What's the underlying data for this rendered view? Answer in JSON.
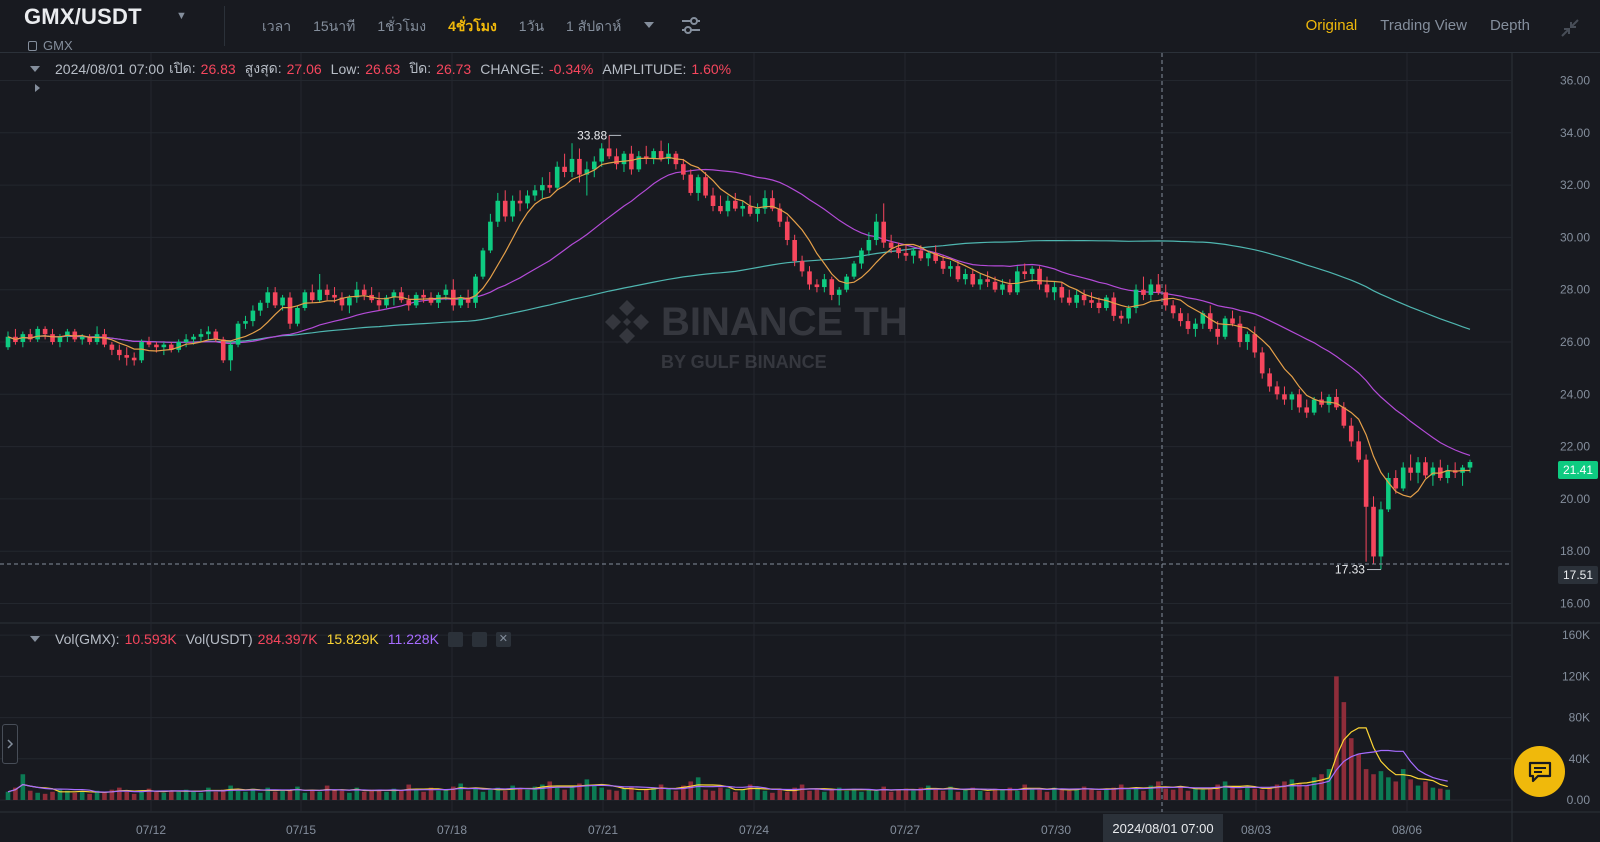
{
  "header": {
    "pair": "GMX/USDT",
    "asset": "GMX",
    "intervals": [
      {
        "label": "เวลา",
        "active": false
      },
      {
        "label": "15นาที",
        "active": false
      },
      {
        "label": "1ชั่วโมง",
        "active": false
      },
      {
        "label": "4ชั่วโมง",
        "active": true
      },
      {
        "label": "1วัน",
        "active": false
      },
      {
        "label": "1 สัปดาห์",
        "active": false
      }
    ],
    "views": [
      {
        "label": "Original",
        "active": true
      },
      {
        "label": "Trading View",
        "active": false
      },
      {
        "label": "Depth",
        "active": false
      }
    ]
  },
  "legend": {
    "datetime": "2024/08/01 07:00",
    "open_label": "เปิด:",
    "open": "26.83",
    "high_label": "สูงสุด:",
    "high": "27.06",
    "low_label": "Low:",
    "low": "26.63",
    "close_label": "ปิด:",
    "close": "26.73",
    "change_label": "CHANGE:",
    "change": "-0.34%",
    "amplitude_label": "AMPLITUDE:",
    "amplitude": "1.60%"
  },
  "volume_legend": {
    "vol_gmx_label": "Vol(GMX):",
    "vol_gmx": "10.593K",
    "vol_usdt_label": "Vol(USDT)",
    "vol_usdt": "284.397K",
    "ma1": "15.829K",
    "ma2": "11.228K"
  },
  "watermark": {
    "brand": "BINANCE TH",
    "sub": "BY GULF BINANCE"
  },
  "colors": {
    "up": "#0ecb81",
    "down": "#f6465d",
    "accent": "#f0b90b",
    "ma7": "#e5a049",
    "ma25": "#b44bd8",
    "ma99": "#4fb6b0"
  },
  "chart_data": {
    "type": "candlestick",
    "price_axis": {
      "ticks": [
        16,
        18,
        20,
        22,
        24,
        26,
        28,
        30,
        32,
        34,
        36
      ],
      "ylim": [
        15.6,
        36.4
      ]
    },
    "price_tick_labels": [
      "16.00",
      "18.00",
      "20.00",
      "22.00",
      "24.00",
      "26.00",
      "28.00",
      "30.00",
      "32.00",
      "34.00",
      "36.00"
    ],
    "volume_axis": {
      "ticks": [
        0,
        40000,
        80000,
        120000,
        160000
      ],
      "labels": [
        "0.00",
        "40K",
        "80K",
        "120K",
        "160K"
      ],
      "ylim": [
        0,
        165000
      ]
    },
    "x_ticks": [
      "07/12",
      "07/15",
      "07/18",
      "07/21",
      "07/24",
      "07/27",
      "07/30",
      "08/03",
      "08/06"
    ],
    "crosshair_x_label": "2024/08/01 07:00",
    "crosshair_price": 17.51,
    "last_price": "21.41",
    "crosshair_price_label": "17.51",
    "annotations": {
      "high": "33.88",
      "low": "17.33"
    },
    "candles_4h": [
      [
        25.8,
        26.4,
        25.7,
        26.2
      ],
      [
        26.2,
        26.5,
        25.9,
        26.0
      ],
      [
        26.0,
        26.4,
        25.8,
        26.3
      ],
      [
        26.3,
        26.5,
        26.0,
        26.1
      ],
      [
        26.1,
        26.6,
        26.0,
        26.5
      ],
      [
        26.5,
        26.6,
        26.1,
        26.3
      ],
      [
        26.3,
        26.5,
        25.9,
        26.0
      ],
      [
        26.0,
        26.3,
        25.8,
        26.2
      ],
      [
        26.2,
        26.5,
        26.0,
        26.4
      ],
      [
        26.4,
        26.5,
        26.0,
        26.1
      ],
      [
        26.1,
        26.3,
        25.9,
        26.2
      ],
      [
        26.2,
        26.3,
        25.9,
        26.0
      ],
      [
        26.0,
        26.6,
        25.9,
        26.3
      ],
      [
        26.3,
        26.5,
        25.8,
        25.9
      ],
      [
        25.9,
        26.0,
        25.5,
        25.7
      ],
      [
        25.7,
        25.9,
        25.3,
        25.5
      ],
      [
        25.5,
        25.8,
        25.1,
        25.4
      ],
      [
        25.4,
        25.6,
        25.1,
        25.3
      ],
      [
        25.3,
        26.1,
        25.2,
        26.0
      ],
      [
        26.0,
        26.2,
        25.8,
        25.9
      ],
      [
        25.9,
        26.0,
        25.6,
        25.8
      ],
      [
        25.8,
        26.0,
        25.5,
        25.9
      ],
      [
        25.9,
        26.0,
        25.6,
        25.7
      ],
      [
        25.7,
        26.1,
        25.6,
        26.0
      ],
      [
        26.0,
        26.3,
        25.8,
        26.1
      ],
      [
        26.1,
        26.3,
        25.9,
        26.2
      ],
      [
        26.2,
        26.5,
        26.0,
        26.3
      ],
      [
        26.3,
        26.6,
        26.1,
        26.4
      ],
      [
        26.4,
        26.5,
        26.0,
        26.1
      ],
      [
        26.1,
        26.2,
        25.2,
        25.3
      ],
      [
        25.3,
        26.0,
        24.9,
        25.9
      ],
      [
        25.9,
        26.8,
        25.8,
        26.7
      ],
      [
        26.7,
        27.0,
        26.5,
        26.8
      ],
      [
        26.8,
        27.4,
        26.6,
        27.2
      ],
      [
        27.2,
        27.6,
        27.0,
        27.5
      ],
      [
        27.5,
        28.1,
        27.3,
        27.9
      ],
      [
        27.9,
        28.1,
        27.3,
        27.4
      ],
      [
        27.4,
        27.8,
        27.2,
        27.7
      ],
      [
        27.7,
        27.9,
        26.5,
        26.7
      ],
      [
        26.7,
        27.4,
        26.6,
        27.3
      ],
      [
        27.3,
        28.0,
        27.2,
        27.9
      ],
      [
        27.9,
        28.2,
        27.5,
        27.6
      ],
      [
        27.6,
        28.6,
        27.5,
        28.0
      ],
      [
        28.0,
        28.2,
        27.6,
        27.8
      ],
      [
        27.8,
        28.1,
        27.5,
        27.7
      ],
      [
        27.7,
        27.9,
        27.2,
        27.4
      ],
      [
        27.4,
        27.8,
        27.1,
        27.7
      ],
      [
        27.7,
        28.3,
        27.5,
        28.0
      ],
      [
        28.0,
        28.2,
        27.6,
        27.8
      ],
      [
        27.8,
        28.1,
        27.5,
        27.6
      ],
      [
        27.6,
        27.9,
        27.2,
        27.4
      ],
      [
        27.4,
        27.8,
        27.3,
        27.7
      ],
      [
        27.7,
        28.0,
        27.4,
        27.9
      ],
      [
        27.9,
        28.1,
        27.5,
        27.6
      ],
      [
        27.6,
        27.8,
        27.2,
        27.4
      ],
      [
        27.4,
        27.9,
        27.3,
        27.8
      ],
      [
        27.8,
        28.0,
        27.5,
        27.7
      ],
      [
        27.7,
        27.9,
        27.4,
        27.5
      ],
      [
        27.5,
        27.9,
        27.3,
        27.8
      ],
      [
        27.8,
        28.2,
        27.6,
        28.0
      ],
      [
        28.0,
        28.4,
        27.2,
        27.4
      ],
      [
        27.4,
        27.8,
        27.3,
        27.7
      ],
      [
        27.7,
        28.0,
        27.3,
        27.5
      ],
      [
        27.5,
        28.6,
        27.3,
        28.5
      ],
      [
        28.5,
        29.6,
        28.4,
        29.5
      ],
      [
        29.5,
        30.9,
        29.4,
        30.6
      ],
      [
        30.6,
        31.7,
        30.4,
        31.4
      ],
      [
        31.4,
        31.8,
        30.6,
        30.8
      ],
      [
        30.8,
        31.6,
        30.6,
        31.4
      ],
      [
        31.4,
        31.8,
        31.0,
        31.3
      ],
      [
        31.3,
        31.8,
        31.1,
        31.6
      ],
      [
        31.6,
        32.0,
        31.4,
        31.8
      ],
      [
        31.8,
        32.3,
        31.5,
        32.0
      ],
      [
        32.0,
        32.5,
        31.7,
        31.9
      ],
      [
        31.9,
        32.9,
        31.8,
        32.7
      ],
      [
        32.7,
        33.2,
        32.3,
        32.5
      ],
      [
        32.5,
        33.6,
        32.3,
        33.0
      ],
      [
        33.0,
        33.4,
        32.1,
        32.4
      ],
      [
        32.4,
        32.9,
        31.6,
        32.6
      ],
      [
        32.6,
        33.1,
        32.3,
        32.9
      ],
      [
        32.9,
        33.6,
        32.7,
        33.4
      ],
      [
        33.4,
        33.9,
        33.0,
        33.1
      ],
      [
        33.1,
        33.4,
        32.6,
        32.8
      ],
      [
        32.8,
        33.3,
        32.5,
        33.2
      ],
      [
        33.2,
        33.5,
        32.4,
        32.6
      ],
      [
        32.6,
        33.3,
        32.5,
        33.1
      ],
      [
        33.1,
        33.5,
        32.8,
        33.0
      ],
      [
        33.0,
        33.4,
        32.8,
        33.3
      ],
      [
        33.3,
        33.7,
        32.9,
        33.0
      ],
      [
        33.0,
        33.6,
        32.8,
        33.2
      ],
      [
        33.2,
        33.3,
        32.6,
        32.8
      ],
      [
        32.8,
        33.0,
        32.2,
        32.4
      ],
      [
        32.4,
        32.6,
        31.6,
        31.7
      ],
      [
        31.7,
        32.4,
        31.4,
        32.3
      ],
      [
        32.3,
        32.5,
        31.5,
        31.6
      ],
      [
        31.6,
        31.9,
        31.0,
        31.2
      ],
      [
        31.2,
        31.6,
        30.9,
        31.0
      ],
      [
        31.0,
        31.6,
        30.8,
        31.4
      ],
      [
        31.4,
        31.7,
        31.0,
        31.1
      ],
      [
        31.1,
        31.4,
        30.8,
        31.2
      ],
      [
        31.2,
        31.6,
        30.8,
        30.9
      ],
      [
        30.9,
        31.3,
        30.6,
        31.1
      ],
      [
        31.1,
        31.8,
        30.9,
        31.5
      ],
      [
        31.5,
        31.8,
        31.0,
        31.1
      ],
      [
        31.1,
        31.3,
        30.4,
        30.6
      ],
      [
        30.6,
        30.8,
        29.7,
        29.9
      ],
      [
        29.9,
        30.1,
        28.9,
        29.1
      ],
      [
        29.1,
        29.3,
        28.5,
        28.7
      ],
      [
        28.7,
        28.9,
        28.0,
        28.2
      ],
      [
        28.2,
        28.4,
        27.9,
        28.1
      ],
      [
        28.1,
        28.6,
        27.9,
        28.4
      ],
      [
        28.4,
        28.5,
        27.6,
        27.8
      ],
      [
        27.8,
        28.1,
        27.4,
        28.0
      ],
      [
        28.0,
        28.6,
        27.9,
        28.5
      ],
      [
        28.5,
        29.1,
        28.4,
        29.0
      ],
      [
        29.0,
        29.6,
        28.8,
        29.5
      ],
      [
        29.5,
        30.2,
        29.3,
        29.9
      ],
      [
        29.9,
        30.9,
        29.7,
        30.6
      ],
      [
        30.6,
        31.3,
        29.6,
        29.8
      ],
      [
        29.8,
        30.1,
        29.4,
        29.6
      ],
      [
        29.6,
        29.8,
        29.2,
        29.4
      ],
      [
        29.4,
        29.7,
        29.1,
        29.3
      ],
      [
        29.3,
        29.6,
        29.0,
        29.5
      ],
      [
        29.5,
        29.7,
        29.1,
        29.2
      ],
      [
        29.2,
        29.5,
        28.9,
        29.4
      ],
      [
        29.4,
        29.7,
        29.0,
        29.1
      ],
      [
        29.1,
        29.3,
        28.6,
        28.8
      ],
      [
        28.8,
        29.1,
        28.5,
        28.9
      ],
      [
        28.9,
        29.1,
        28.3,
        28.4
      ],
      [
        28.4,
        28.8,
        28.2,
        28.6
      ],
      [
        28.6,
        28.8,
        28.1,
        28.2
      ],
      [
        28.2,
        28.6,
        28.0,
        28.4
      ],
      [
        28.4,
        28.7,
        28.1,
        28.3
      ],
      [
        28.3,
        28.5,
        27.9,
        28.0
      ],
      [
        28.0,
        28.4,
        27.8,
        28.2
      ],
      [
        28.2,
        28.4,
        27.8,
        27.9
      ],
      [
        27.9,
        28.9,
        27.8,
        28.7
      ],
      [
        28.7,
        29.0,
        28.4,
        28.6
      ],
      [
        28.6,
        28.9,
        28.3,
        28.8
      ],
      [
        28.8,
        28.9,
        28.0,
        28.2
      ],
      [
        28.2,
        28.5,
        27.7,
        27.9
      ],
      [
        27.9,
        28.3,
        27.6,
        28.1
      ],
      [
        28.1,
        28.3,
        27.5,
        27.7
      ],
      [
        27.7,
        28.0,
        27.4,
        27.5
      ],
      [
        27.5,
        28.0,
        27.3,
        27.8
      ],
      [
        27.8,
        28.0,
        27.4,
        27.6
      ],
      [
        27.6,
        27.9,
        27.3,
        27.5
      ],
      [
        27.5,
        27.7,
        27.1,
        27.3
      ],
      [
        27.3,
        27.8,
        27.2,
        27.7
      ],
      [
        27.7,
        27.9,
        26.8,
        27.0
      ],
      [
        27.0,
        27.2,
        26.7,
        26.9
      ],
      [
        26.9,
        27.4,
        26.7,
        27.3
      ],
      [
        27.3,
        28.2,
        27.1,
        28.0
      ],
      [
        28.0,
        28.5,
        27.6,
        27.8
      ],
      [
        27.8,
        28.4,
        27.6,
        28.2
      ],
      [
        28.2,
        28.6,
        27.8,
        27.9
      ],
      [
        27.9,
        28.2,
        27.2,
        27.4
      ],
      [
        27.4,
        27.6,
        26.9,
        27.1
      ],
      [
        27.1,
        27.3,
        26.6,
        26.8
      ],
      [
        26.8,
        27.1,
        26.3,
        26.5
      ],
      [
        26.5,
        26.9,
        26.2,
        26.7
      ],
      [
        26.7,
        27.2,
        26.5,
        27.1
      ],
      [
        27.1,
        27.4,
        26.4,
        26.5
      ],
      [
        26.5,
        26.8,
        25.9,
        26.2
      ],
      [
        26.2,
        27.0,
        26.1,
        26.9
      ],
      [
        26.9,
        27.2,
        26.6,
        26.7
      ],
      [
        26.7,
        27.0,
        25.8,
        26.0
      ],
      [
        26.0,
        26.4,
        25.7,
        26.3
      ],
      [
        26.3,
        26.6,
        25.4,
        25.6
      ],
      [
        25.6,
        25.8,
        24.6,
        24.8
      ],
      [
        24.8,
        25.0,
        24.1,
        24.3
      ],
      [
        24.3,
        24.5,
        23.8,
        24.0
      ],
      [
        24.0,
        24.3,
        23.6,
        23.8
      ],
      [
        23.8,
        24.1,
        23.4,
        24.0
      ],
      [
        24.0,
        24.2,
        23.3,
        23.5
      ],
      [
        23.5,
        23.8,
        23.1,
        23.3
      ],
      [
        23.3,
        23.9,
        23.2,
        23.8
      ],
      [
        23.8,
        24.1,
        23.5,
        23.6
      ],
      [
        23.6,
        24.0,
        23.3,
        23.9
      ],
      [
        23.9,
        24.2,
        23.4,
        23.5
      ],
      [
        23.5,
        23.7,
        22.7,
        22.8
      ],
      [
        22.8,
        23.1,
        22.0,
        22.2
      ],
      [
        22.2,
        22.6,
        21.4,
        21.5
      ],
      [
        21.5,
        21.7,
        17.6,
        19.7
      ],
      [
        19.7,
        20.1,
        17.5,
        17.8
      ],
      [
        17.8,
        19.9,
        17.3,
        19.6
      ],
      [
        19.6,
        21.0,
        19.5,
        20.8
      ],
      [
        20.8,
        21.1,
        20.2,
        20.4
      ],
      [
        20.4,
        21.4,
        20.3,
        21.2
      ],
      [
        21.2,
        21.7,
        20.7,
        21.0
      ],
      [
        21.0,
        21.6,
        20.6,
        21.4
      ],
      [
        21.4,
        21.6,
        20.8,
        20.9
      ],
      [
        20.9,
        21.4,
        20.5,
        21.2
      ],
      [
        21.2,
        21.5,
        20.7,
        20.8
      ],
      [
        20.8,
        21.3,
        20.6,
        21.1
      ],
      [
        21.1,
        21.4,
        20.8,
        21.0
      ],
      [
        21.0,
        21.3,
        20.5,
        21.2
      ],
      [
        21.2,
        21.5,
        21.0,
        21.41
      ]
    ],
    "volume_usdt_k": [
      8,
      12,
      25,
      9,
      7,
      6,
      8,
      10,
      9,
      7,
      8,
      6,
      9,
      7,
      10,
      12,
      8,
      6,
      9,
      11,
      8,
      7,
      9,
      8,
      10,
      9,
      7,
      12,
      8,
      10,
      14,
      9,
      8,
      11,
      7,
      12,
      8,
      10,
      9,
      13,
      7,
      9,
      8,
      14,
      10,
      9,
      7,
      12,
      8,
      10,
      9,
      8,
      11,
      9,
      15,
      10,
      8,
      12,
      9,
      10,
      13,
      16,
      9,
      11,
      8,
      10,
      12,
      9,
      14,
      11,
      10,
      13,
      15,
      18,
      12,
      10,
      13,
      16,
      20,
      14,
      12,
      10,
      9,
      11,
      13,
      8,
      10,
      12,
      15,
      11,
      9,
      14,
      18,
      22,
      10,
      9,
      12,
      11,
      8,
      10,
      15,
      12,
      9,
      7,
      10,
      8,
      12,
      15,
      9,
      11,
      8,
      10,
      12,
      9,
      11,
      8,
      10,
      9,
      13,
      8,
      10,
      11,
      9,
      12,
      14,
      10,
      9,
      13,
      8,
      10,
      12,
      9,
      8,
      11,
      10,
      12,
      9,
      15,
      11,
      10,
      8,
      12,
      10,
      9,
      11,
      13,
      10,
      9,
      11,
      12,
      15,
      10,
      12,
      9,
      14,
      18,
      11,
      10,
      13,
      9,
      12,
      10,
      11,
      15,
      18,
      12,
      10,
      14,
      11,
      10,
      12,
      15,
      18,
      20,
      16,
      14,
      22,
      25,
      30,
      120,
      95,
      60,
      45,
      30,
      25,
      28,
      22,
      18,
      30,
      20,
      14,
      18,
      12,
      11,
      10
    ]
  }
}
